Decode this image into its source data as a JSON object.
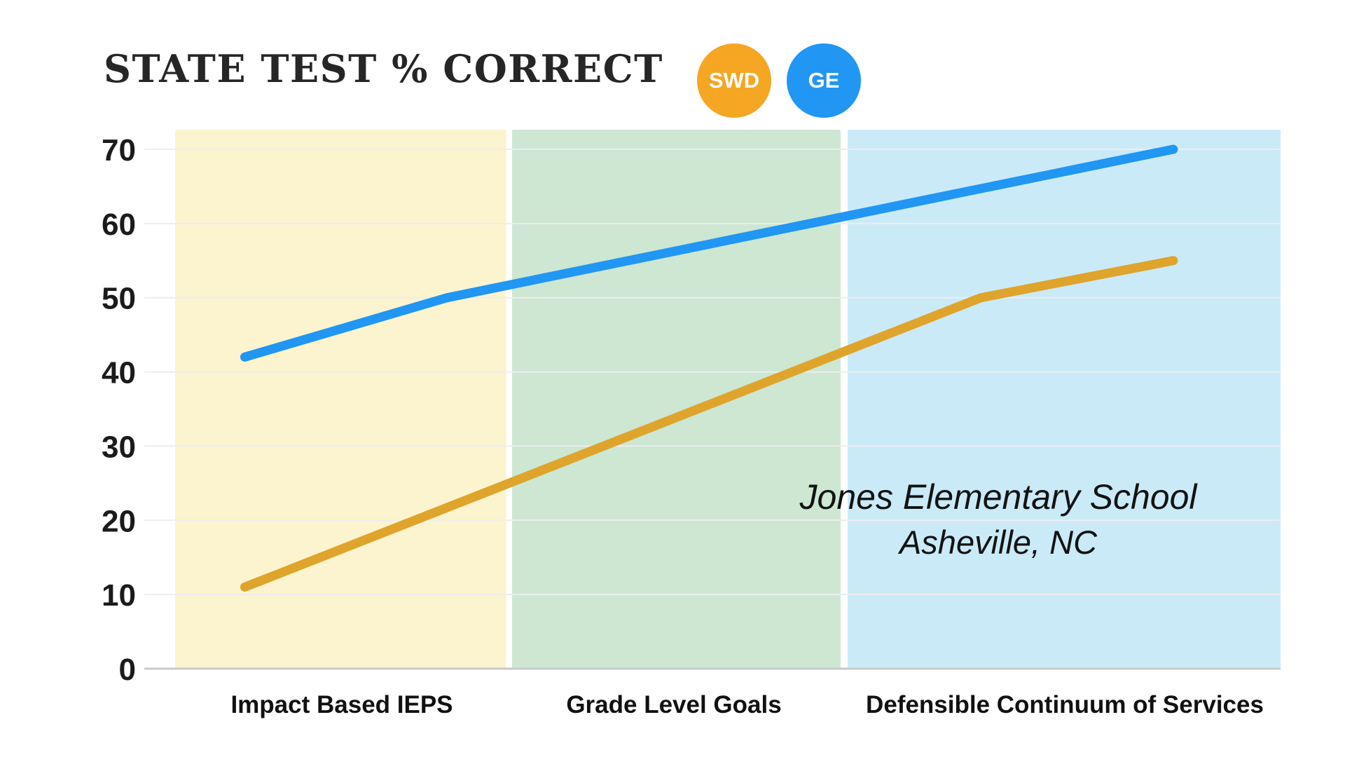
{
  "chart_data": {
    "type": "line",
    "title": "STATE TEST % CORRECT",
    "xlabel": "",
    "ylabel": "",
    "ylim": [
      0,
      70
    ],
    "yticks": [
      0,
      10,
      20,
      30,
      40,
      50,
      60,
      70
    ],
    "grid": true,
    "legend_position": "top",
    "categories": [
      "Impact Based IEPS",
      "Grade Level Goals",
      "Defensible Continuum of Services"
    ],
    "phases": [
      {
        "label": "Impact Based IEPS",
        "band_color": "#FCF4CF"
      },
      {
        "label": "Grade Level Goals",
        "band_color": "#CDE7D3"
      },
      {
        "label": "Defensible Continuum of Services",
        "band_color": "#CBEAF8"
      }
    ],
    "series": [
      {
        "name": "SWD",
        "color": "#DFA42C",
        "legend_color": "#F5A623",
        "points": [
          {
            "x": 0.063,
            "value": 11
          },
          {
            "x": 0.729,
            "value": 50
          },
          {
            "x": 0.903,
            "value": 55
          }
        ]
      },
      {
        "name": "GE",
        "color": "#2196F3",
        "legend_color": "#2196F3",
        "points": [
          {
            "x": 0.063,
            "value": 42
          },
          {
            "x": 0.246,
            "value": 50
          },
          {
            "x": 0.903,
            "value": 70
          }
        ]
      }
    ]
  },
  "annotation": {
    "line1": "Jones Elementary School",
    "line2": "Asheville, NC"
  },
  "colors": {
    "axis_line": "#c9c9c9",
    "gridline": "#ededed",
    "tick_text": "#1b1b1b"
  }
}
